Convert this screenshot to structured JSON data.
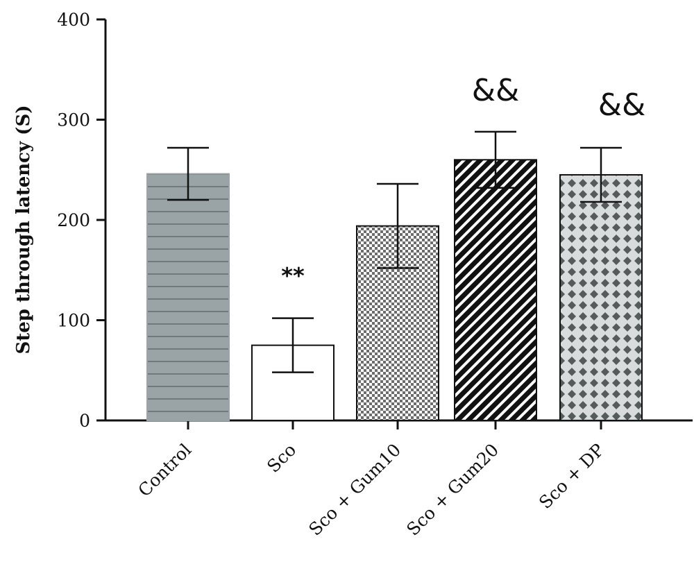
{
  "chart_data": {
    "type": "bar",
    "title": "",
    "xlabel": "",
    "ylabel": "Step through latency (S)",
    "ylim": [
      0,
      400
    ],
    "yticks": [
      0,
      100,
      200,
      300,
      400
    ],
    "grid": false,
    "categories": [
      "Control",
      "Sco",
      "Sco + Gum10",
      "Sco + Gum20",
      "Sco + DP"
    ],
    "values": [
      246,
      75,
      194,
      260,
      245
    ],
    "error": [
      26,
      27,
      42,
      28,
      27
    ],
    "annotations": [
      "",
      "**",
      "",
      "&&",
      "&&"
    ],
    "patterns": [
      "horizontal-stripes",
      "plain-white",
      "fine-checker",
      "diagonal-stripes",
      "diamond-lattice"
    ]
  }
}
